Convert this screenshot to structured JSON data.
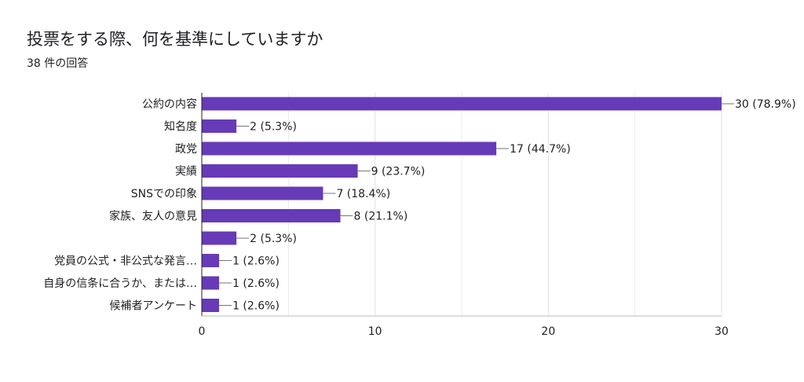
{
  "title": "投票をする際、何を基準にしていますか",
  "subtitle": "38 件の回答",
  "colors": {
    "bar": "#673ab7",
    "grid": "#e0e0e0",
    "axis": "#202124",
    "text": "#202124"
  },
  "chart_data": {
    "type": "bar",
    "orientation": "horizontal",
    "categories": [
      "公約の内容",
      "知名度",
      "政党",
      "実績",
      "SNSでの印象",
      "家族、友人の意見",
      "",
      "党員の公式・非公式な発言…",
      "自身の信条に合うか、または…",
      "候補者アンケート"
    ],
    "values": [
      30,
      2,
      17,
      9,
      7,
      8,
      2,
      1,
      1,
      1
    ],
    "value_labels": [
      "30 (78.9%)",
      "2 (5.3%)",
      "17 (44.7%)",
      "9 (23.7%)",
      "7 (18.4%)",
      "8 (21.1%)",
      "2 (5.3%)",
      "1 (2.6%)",
      "1 (2.6%)",
      "1 (2.6%)"
    ],
    "xlim": [
      0,
      30
    ],
    "xticks": [
      "0",
      "10",
      "20",
      "30"
    ],
    "xtick_values": [
      0,
      10,
      20,
      30
    ],
    "grid": true,
    "legend": "none"
  }
}
